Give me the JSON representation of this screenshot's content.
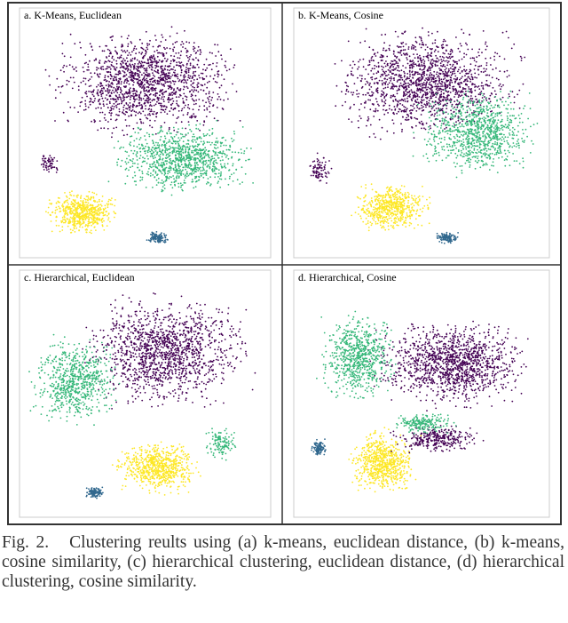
{
  "figure": {
    "panels": [
      {
        "title": "a. K-Means, Euclidean"
      },
      {
        "title": "b. K-Means, Cosine"
      },
      {
        "title": "c. Hierarchical, Euclidean"
      },
      {
        "title": "d. Hierarchical, Cosine"
      }
    ],
    "caption": "Fig. 2.   Clustering reults using (a) k-means, euclidean distance, (b) k-means, cosine similarity, (c) hierarchical clustering, euclidean distance, (d) hierarchical clustering, cosine similarity."
  }
}
